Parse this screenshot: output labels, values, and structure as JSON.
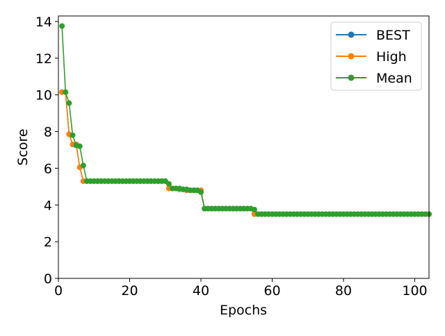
{
  "chart_data": {
    "type": "line",
    "xlabel": "Epochs",
    "ylabel": "Score",
    "xlim": [
      0,
      104
    ],
    "ylim": [
      0,
      14.3
    ],
    "x_ticks": [
      0,
      20,
      40,
      60,
      80,
      100
    ],
    "y_ticks": [
      0,
      2,
      4,
      6,
      8,
      10,
      12,
      14
    ],
    "grid": false,
    "legend_position": "top-right",
    "series": [
      {
        "name": "BEST",
        "color": "#1f77b4",
        "x": [
          1,
          2,
          3,
          4,
          5,
          6,
          7,
          8,
          9,
          10,
          11,
          12,
          13,
          14,
          15,
          16,
          17,
          18,
          19,
          20,
          21,
          22,
          23,
          24,
          25,
          26,
          27,
          28,
          29,
          30,
          31,
          32,
          33,
          34,
          35,
          36,
          37,
          38,
          39,
          40,
          41,
          42,
          43,
          44,
          45,
          46,
          47,
          48,
          49,
          50,
          51,
          52,
          53,
          54,
          55,
          56,
          57,
          58,
          59,
          60,
          61,
          62,
          63,
          64,
          65,
          66,
          67,
          68,
          69,
          70,
          71,
          72,
          73,
          74,
          75,
          76,
          77,
          78,
          79,
          80,
          81,
          82,
          83,
          84,
          85,
          86,
          87,
          88,
          89,
          90,
          91,
          92,
          93,
          94,
          95,
          96,
          97,
          98,
          99,
          100,
          101,
          102,
          103,
          104
        ],
        "values": [
          10.15,
          10.15,
          7.85,
          7.3,
          7.3,
          6.05,
          5.3,
          5.3,
          5.3,
          5.3,
          5.3,
          5.3,
          5.3,
          5.3,
          5.3,
          5.3,
          5.3,
          5.3,
          5.3,
          5.3,
          5.3,
          5.3,
          5.3,
          5.3,
          5.3,
          5.3,
          5.3,
          5.3,
          5.3,
          5.3,
          4.9,
          4.9,
          4.9,
          4.85,
          4.85,
          4.8,
          4.8,
          4.8,
          4.8,
          4.8,
          3.8,
          3.8,
          3.8,
          3.8,
          3.8,
          3.8,
          3.8,
          3.8,
          3.8,
          3.8,
          3.8,
          3.8,
          3.8,
          3.8,
          3.5,
          3.5,
          3.5,
          3.5,
          3.5,
          3.5,
          3.5,
          3.5,
          3.5,
          3.5,
          3.5,
          3.5,
          3.5,
          3.5,
          3.5,
          3.5,
          3.5,
          3.5,
          3.5,
          3.5,
          3.5,
          3.5,
          3.5,
          3.5,
          3.5,
          3.5,
          3.5,
          3.5,
          3.5,
          3.5,
          3.5,
          3.5,
          3.5,
          3.5,
          3.5,
          3.5,
          3.5,
          3.5,
          3.5,
          3.5,
          3.5,
          3.5,
          3.5,
          3.5,
          3.5,
          3.5,
          3.5,
          3.5,
          3.5,
          3.5
        ]
      },
      {
        "name": "High",
        "color": "#ff7f0e",
        "x": [
          1,
          2,
          3,
          4,
          5,
          6,
          7,
          8,
          9,
          10,
          11,
          12,
          13,
          14,
          15,
          16,
          17,
          18,
          19,
          20,
          21,
          22,
          23,
          24,
          25,
          26,
          27,
          28,
          29,
          30,
          31,
          32,
          33,
          34,
          35,
          36,
          37,
          38,
          39,
          40,
          41,
          42,
          43,
          44,
          45,
          46,
          47,
          48,
          49,
          50,
          51,
          52,
          53,
          54,
          55,
          56,
          57,
          58,
          59,
          60,
          61,
          62,
          63,
          64,
          65,
          66,
          67,
          68,
          69,
          70,
          71,
          72,
          73,
          74,
          75,
          76,
          77,
          78,
          79,
          80,
          81,
          82,
          83,
          84,
          85,
          86,
          87,
          88,
          89,
          90,
          91,
          92,
          93,
          94,
          95,
          96,
          97,
          98,
          99,
          100,
          101,
          102,
          103,
          104
        ],
        "values": [
          10.15,
          10.15,
          7.85,
          7.3,
          7.3,
          6.05,
          5.3,
          5.3,
          5.3,
          5.3,
          5.3,
          5.3,
          5.3,
          5.3,
          5.3,
          5.3,
          5.3,
          5.3,
          5.3,
          5.3,
          5.3,
          5.3,
          5.3,
          5.3,
          5.3,
          5.3,
          5.3,
          5.3,
          5.3,
          5.3,
          4.9,
          4.9,
          4.9,
          4.85,
          4.85,
          4.8,
          4.8,
          4.8,
          4.8,
          4.8,
          3.8,
          3.8,
          3.8,
          3.8,
          3.8,
          3.8,
          3.8,
          3.8,
          3.8,
          3.8,
          3.8,
          3.8,
          3.8,
          3.8,
          3.5,
          3.5,
          3.5,
          3.5,
          3.5,
          3.5,
          3.5,
          3.5,
          3.5,
          3.5,
          3.5,
          3.5,
          3.5,
          3.5,
          3.5,
          3.5,
          3.5,
          3.5,
          3.5,
          3.5,
          3.5,
          3.5,
          3.5,
          3.5,
          3.5,
          3.5,
          3.5,
          3.5,
          3.5,
          3.5,
          3.5,
          3.5,
          3.5,
          3.5,
          3.5,
          3.5,
          3.5,
          3.5,
          3.5,
          3.5,
          3.5,
          3.5,
          3.5,
          3.5,
          3.5,
          3.5,
          3.5,
          3.5,
          3.5,
          3.5
        ]
      },
      {
        "name": "Mean",
        "color": "#2ca02c",
        "x": [
          1,
          2,
          3,
          4,
          5,
          6,
          7,
          8,
          9,
          10,
          11,
          12,
          13,
          14,
          15,
          16,
          17,
          18,
          19,
          20,
          21,
          22,
          23,
          24,
          25,
          26,
          27,
          28,
          29,
          30,
          31,
          32,
          33,
          34,
          35,
          36,
          37,
          38,
          39,
          40,
          41,
          42,
          43,
          44,
          45,
          46,
          47,
          48,
          49,
          50,
          51,
          52,
          53,
          54,
          55,
          56,
          57,
          58,
          59,
          60,
          61,
          62,
          63,
          64,
          65,
          66,
          67,
          68,
          69,
          70,
          71,
          72,
          73,
          74,
          75,
          76,
          77,
          78,
          79,
          80,
          81,
          82,
          83,
          84,
          85,
          86,
          87,
          88,
          89,
          90,
          91,
          92,
          93,
          94,
          95,
          96,
          97,
          98,
          99,
          100,
          101,
          102,
          103,
          104
        ],
        "values": [
          13.75,
          10.15,
          9.55,
          7.8,
          7.25,
          7.2,
          6.15,
          5.3,
          5.3,
          5.3,
          5.3,
          5.3,
          5.3,
          5.3,
          5.3,
          5.3,
          5.3,
          5.3,
          5.3,
          5.3,
          5.3,
          5.3,
          5.3,
          5.3,
          5.3,
          5.3,
          5.3,
          5.3,
          5.3,
          5.3,
          5.15,
          4.9,
          4.9,
          4.9,
          4.85,
          4.85,
          4.8,
          4.8,
          4.8,
          4.7,
          3.8,
          3.8,
          3.8,
          3.8,
          3.8,
          3.8,
          3.8,
          3.8,
          3.8,
          3.8,
          3.8,
          3.8,
          3.8,
          3.8,
          3.75,
          3.5,
          3.5,
          3.5,
          3.5,
          3.5,
          3.5,
          3.5,
          3.5,
          3.5,
          3.5,
          3.5,
          3.5,
          3.5,
          3.5,
          3.5,
          3.5,
          3.5,
          3.5,
          3.5,
          3.5,
          3.5,
          3.5,
          3.5,
          3.5,
          3.5,
          3.5,
          3.5,
          3.5,
          3.5,
          3.5,
          3.5,
          3.5,
          3.5,
          3.5,
          3.5,
          3.5,
          3.5,
          3.5,
          3.5,
          3.5,
          3.5,
          3.5,
          3.5,
          3.5,
          3.5,
          3.5,
          3.5,
          3.5,
          3.5
        ]
      }
    ]
  }
}
